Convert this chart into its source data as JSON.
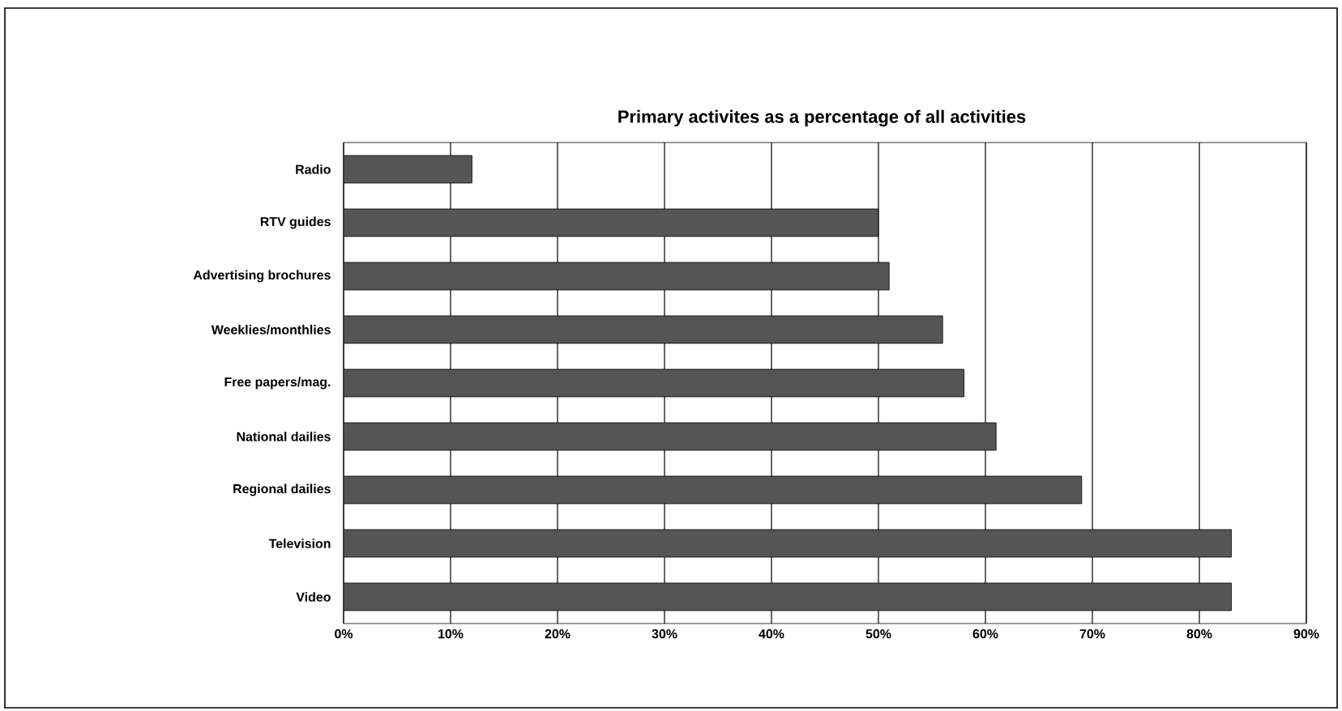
{
  "chart_data": {
    "type": "bar",
    "orientation": "horizontal",
    "title": "Primary activites as a percentage of all activities",
    "categories": [
      "Radio",
      "RTV guides",
      "Advertising brochures",
      "Weeklies/monthlies",
      "Free papers/mag.",
      "National dailies",
      "Regional dailies",
      "Television",
      "Video"
    ],
    "values": [
      12,
      50,
      51,
      56,
      58,
      61,
      69,
      83,
      83
    ],
    "color": "#555555",
    "xlim": [
      0,
      90
    ],
    "xticks": [
      {
        "value": 0,
        "label": "0%"
      },
      {
        "value": 10,
        "label": "10%"
      },
      {
        "value": 20,
        "label": "20%"
      },
      {
        "value": 30,
        "label": "30%"
      },
      {
        "value": 40,
        "label": "40%"
      },
      {
        "value": 50,
        "label": "50%"
      },
      {
        "value": 60,
        "label": "60%"
      },
      {
        "value": 70,
        "label": "70%"
      },
      {
        "value": 80,
        "label": "80%"
      },
      {
        "value": 90,
        "label": "90%"
      }
    ],
    "grid": "x"
  }
}
